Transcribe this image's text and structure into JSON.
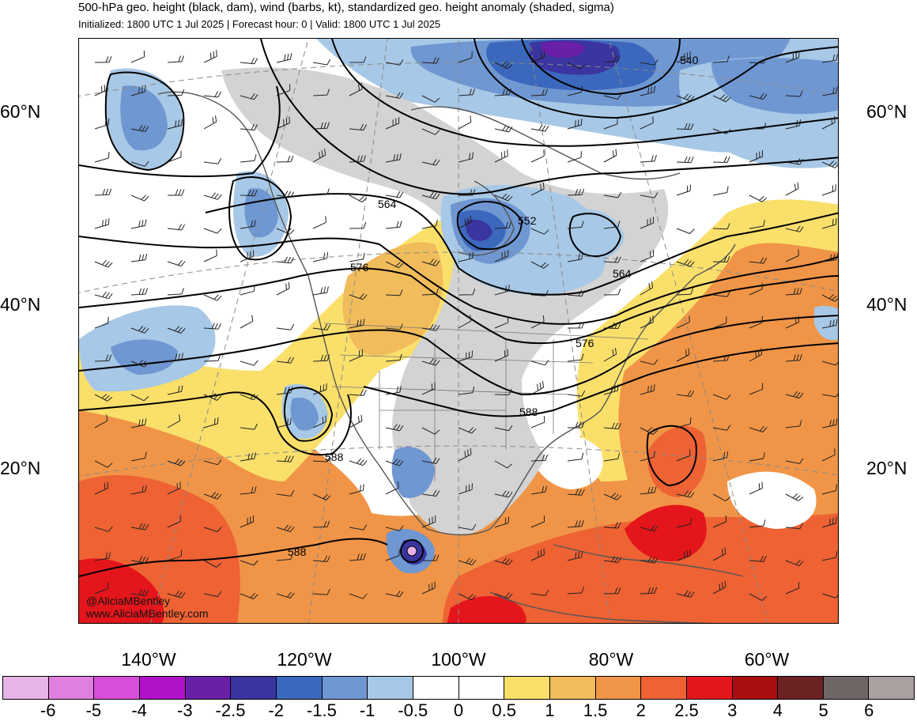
{
  "header": {
    "title": "500-hPa geo. height (black, dam), wind (barbs, kt), standardized geo. height anomaly (shaded, sigma)",
    "subtitle": "Initialized: 1800 UTC 1 Jul 2025 | Forecast hour: 0 | Valid: 1800 UTC 1 Jul 2025"
  },
  "axes": {
    "lat_left": [
      "60°N",
      "40°N",
      "20°N"
    ],
    "lat_right": [
      "60°N",
      "40°N",
      "20°N"
    ],
    "lon": [
      "140°W",
      "120°W",
      "100°W",
      "80°W",
      "60°W"
    ]
  },
  "contour_labels": [
    "540",
    "552",
    "564",
    "564",
    "576",
    "576",
    "588",
    "588",
    "588"
  ],
  "credits": {
    "handle": "@AliciaMBentley",
    "site": "www.AliciaMBentley.com"
  },
  "colorbar": {
    "colors": [
      "#e8b4e8",
      "#e07fe0",
      "#d94ed9",
      "#b012c8",
      "#6a1fa8",
      "#3a35a0",
      "#3b68bd",
      "#6f97d2",
      "#a7c8e6",
      "#ffffff",
      "#ffffff",
      "#fae06b",
      "#f1bc5b",
      "#f09547",
      "#ee6234",
      "#e4161b",
      "#a70f10",
      "#6d2222",
      "#6f6666",
      "#a9a0a0"
    ],
    "labels": [
      "-6",
      "-5",
      "-4",
      "-3",
      "-2.5",
      "-2",
      "-1.5",
      "-1",
      "-0.5",
      "0",
      "0.5",
      "1",
      "1.5",
      "2",
      "2.5",
      "3",
      "4",
      "5",
      "6"
    ]
  },
  "map_colors": {
    "ocean_warm": "#f09547",
    "warm_strong": "#ee6234",
    "warm_max": "#e4161b",
    "warm_light": "#f1bc5b",
    "yellow": "#fae06b",
    "neutral": "#ffffff",
    "land_neutral": "#d3d3d3",
    "cool_light": "#a7c8e6",
    "cool": "#6f97d2",
    "cool_strong": "#3b68bd",
    "cool_deep": "#3a35a0",
    "violet": "#6a1fa8"
  }
}
